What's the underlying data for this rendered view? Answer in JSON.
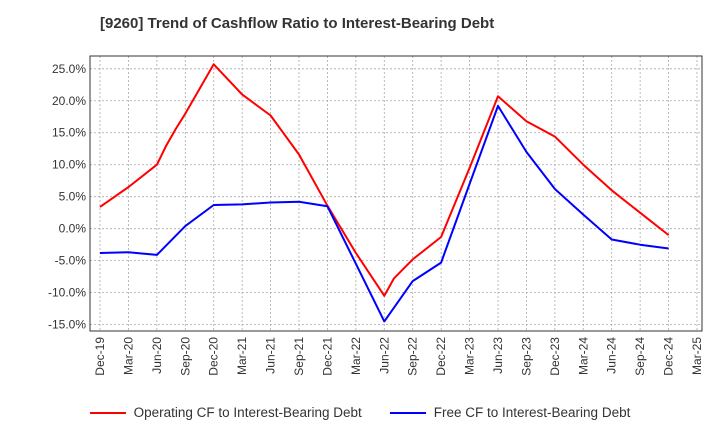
{
  "chart_data": {
    "type": "line",
    "title": "[9260]  Trend of Cashflow Ratio to Interest-Bearing Debt",
    "xlabel": "",
    "ylabel": "",
    "ylim": [
      -16,
      27
    ],
    "y_ticks": [
      -15,
      -10,
      -5,
      0,
      5,
      10,
      15,
      20,
      25
    ],
    "y_tick_labels": [
      "-15.0%",
      "-10.0%",
      "-5.0%",
      "0.0%",
      "5.0%",
      "10.0%",
      "15.0%",
      "20.0%",
      "25.0%"
    ],
    "x_ticks": [
      "Dec-19",
      "Mar-20",
      "Jun-20",
      "Sep-20",
      "Dec-20",
      "Mar-21",
      "Jun-21",
      "Sep-21",
      "Dec-21",
      "Mar-22",
      "Jun-22",
      "Sep-22",
      "Dec-22",
      "Mar-23",
      "Jun-23",
      "Sep-23",
      "Dec-23",
      "Mar-24",
      "Jun-24",
      "Sep-24",
      "Dec-24",
      "Mar-25"
    ],
    "grid": true,
    "legend_position": "bottom",
    "series": [
      {
        "name": "Operating CF to Interest-Bearing Debt",
        "color": "#ff0000",
        "points": [
          {
            "x": "Dec-19",
            "y": 3.4
          },
          {
            "x": "Mar-20",
            "y": 6.5
          },
          {
            "x": "Jun-20",
            "y": 10.0
          },
          {
            "x": "Jul-20",
            "y": 13.0
          },
          {
            "x": "Aug-20",
            "y": 15.6
          },
          {
            "x": "Sep-20",
            "y": 18.0
          },
          {
            "x": "Dec-20",
            "y": 25.7
          },
          {
            "x": "Mar-21",
            "y": 21.0
          },
          {
            "x": "Jun-21",
            "y": 17.7
          },
          {
            "x": "Sep-21",
            "y": 11.6
          },
          {
            "x": "Dec-21",
            "y": 3.6
          },
          {
            "x": "Mar-22",
            "y": -3.8
          },
          {
            "x": "Jun-22",
            "y": -10.5
          },
          {
            "x": "Jul-22",
            "y": -7.8
          },
          {
            "x": "Sep-22",
            "y": -4.8
          },
          {
            "x": "Dec-22",
            "y": -1.3
          },
          {
            "x": "Mar-23",
            "y": 9.5
          },
          {
            "x": "Jun-23",
            "y": 20.7
          },
          {
            "x": "Sep-23",
            "y": 16.8
          },
          {
            "x": "Dec-23",
            "y": 14.4
          },
          {
            "x": "Mar-24",
            "y": 10.0
          },
          {
            "x": "Jun-24",
            "y": 6.0
          },
          {
            "x": "Sep-24",
            "y": 2.5
          },
          {
            "x": "Dec-24",
            "y": -1.0
          }
        ]
      },
      {
        "name": "Free CF to Interest-Bearing Debt",
        "color": "#0000ff",
        "points": [
          {
            "x": "Dec-19",
            "y": -3.8
          },
          {
            "x": "Mar-20",
            "y": -3.7
          },
          {
            "x": "Jun-20",
            "y": -4.1
          },
          {
            "x": "Sep-20",
            "y": 0.4
          },
          {
            "x": "Dec-20",
            "y": 3.7
          },
          {
            "x": "Mar-21",
            "y": 3.8
          },
          {
            "x": "Jun-21",
            "y": 4.1
          },
          {
            "x": "Sep-21",
            "y": 4.2
          },
          {
            "x": "Dec-21",
            "y": 3.5
          },
          {
            "x": "Mar-22",
            "y": -5.5
          },
          {
            "x": "Jun-22",
            "y": -14.5
          },
          {
            "x": "Sep-22",
            "y": -8.2
          },
          {
            "x": "Dec-22",
            "y": -5.3
          },
          {
            "x": "Mar-23",
            "y": 7.0
          },
          {
            "x": "Jun-23",
            "y": 19.2
          },
          {
            "x": "Sep-23",
            "y": 12.0
          },
          {
            "x": "Dec-23",
            "y": 6.2
          },
          {
            "x": "Mar-24",
            "y": 2.2
          },
          {
            "x": "Jun-24",
            "y": -1.7
          },
          {
            "x": "Sep-24",
            "y": -2.5
          },
          {
            "x": "Dec-24",
            "y": -3.1
          }
        ]
      }
    ]
  }
}
